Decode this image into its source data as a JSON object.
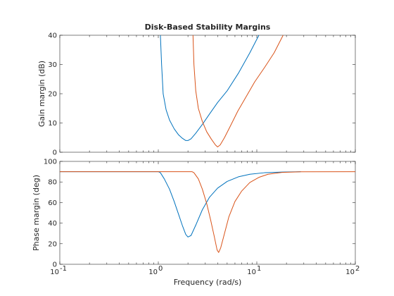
{
  "colors": {
    "series1": "#0072BD",
    "series2": "#D95319",
    "axis": "#262626"
  },
  "chart_data": [
    {
      "type": "line",
      "title": "Disk-Based Stability Margins",
      "xlabel": "",
      "ylabel": "Gain margin (dB)",
      "xscale": "log",
      "xlim": [
        0.1,
        100
      ],
      "ylim": [
        0,
        40
      ],
      "yticks": [
        0,
        10,
        20,
        30,
        40
      ],
      "yticklabels": [
        "0",
        "10",
        "20",
        "30",
        "40"
      ],
      "grid": false,
      "legend": "none",
      "series": [
        {
          "x": [
            1.05,
            1.08,
            1.12,
            1.2,
            1.3,
            1.45,
            1.6,
            1.75,
            1.9,
            2.0,
            2.15,
            2.4,
            2.8,
            3.3,
            4.0,
            5.0,
            6.5,
            8.5,
            10.5
          ],
          "y": [
            40,
            30,
            20,
            14.5,
            11,
            8,
            6,
            4.8,
            4.0,
            4.0,
            4.6,
            6.5,
            9.5,
            13,
            17,
            21,
            27,
            34,
            40
          ]
        },
        {
          "x": [
            2.25,
            2.3,
            2.4,
            2.55,
            2.8,
            3.1,
            3.45,
            3.8,
            4.0,
            4.25,
            4.7,
            5.4,
            6.4,
            7.8,
            9.5,
            12,
            15,
            18.5
          ],
          "y": [
            40,
            30,
            21,
            15,
            10.5,
            7,
            4.5,
            2.5,
            1.8,
            2.5,
            5,
            9,
            14,
            19,
            24,
            29,
            34,
            40
          ]
        }
      ]
    },
    {
      "type": "line",
      "title": "",
      "xlabel": "Frequency (rad/s)",
      "ylabel": "Phase margin (deg)",
      "xscale": "log",
      "xlim": [
        0.1,
        100
      ],
      "ylim": [
        0,
        100
      ],
      "xticks": [
        0.1,
        1,
        10,
        100
      ],
      "xticklabels": [
        [
          "10",
          "-1"
        ],
        [
          "10",
          "0"
        ],
        [
          "10",
          "1"
        ],
        [
          "10",
          "2"
        ]
      ],
      "yticks": [
        0,
        20,
        40,
        60,
        80,
        100
      ],
      "yticklabels": [
        "0",
        "20",
        "40",
        "60",
        "80",
        "100"
      ],
      "grid": false,
      "legend": "none",
      "series": [
        {
          "x": [
            0.1,
            1.0,
            1.05,
            1.15,
            1.3,
            1.45,
            1.6,
            1.75,
            1.9,
            2.0,
            2.15,
            2.4,
            2.8,
            3.3,
            4.0,
            5.0,
            6.5,
            8.5,
            12,
            18,
            28
          ],
          "y": [
            90,
            90,
            89,
            83,
            73,
            61,
            49,
            38,
            29,
            26.5,
            28,
            38,
            53,
            65,
            74,
            80.5,
            85,
            87.5,
            89,
            89.6,
            90
          ]
        },
        {
          "x": [
            0.1,
            2.2,
            2.3,
            2.55,
            2.8,
            3.1,
            3.4,
            3.7,
            3.95,
            4.1,
            4.3,
            4.7,
            5.2,
            6.0,
            7.0,
            8.5,
            10.5,
            13,
            18,
            28,
            100
          ],
          "y": [
            90,
            90,
            89,
            83,
            73,
            59,
            43,
            27,
            14,
            11.5,
            16,
            30,
            46,
            61,
            71,
            79.5,
            84.5,
            87.5,
            89.3,
            89.9,
            90
          ]
        }
      ]
    }
  ]
}
